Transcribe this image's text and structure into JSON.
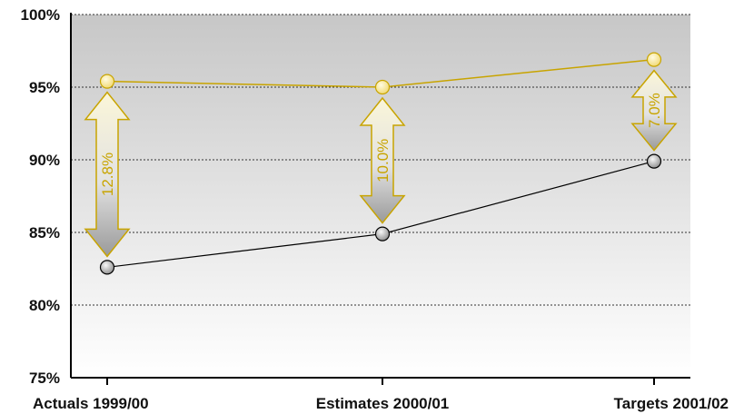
{
  "chart_data": {
    "type": "line",
    "title": "",
    "xlabel": "",
    "ylabel": "",
    "categories": [
      "Actuals 1999/00",
      "Estimates 2000/01",
      "Targets 2001/02"
    ],
    "series": [
      {
        "name": "",
        "values": [
          95.4,
          95.0,
          96.9
        ],
        "color": "#c8a400"
      },
      {
        "name": "",
        "values": [
          82.6,
          84.9,
          89.9
        ],
        "color": "#000000"
      }
    ],
    "gaps": [
      {
        "category": "Actuals 1999/00",
        "label": "12.8%"
      },
      {
        "category": "Estimates 2000/01",
        "label": "10.0%"
      },
      {
        "category": "Targets 2001/02",
        "label": "7.0%"
      }
    ],
    "ylim": [
      75,
      100
    ],
    "yticks": [
      75,
      80,
      85,
      90,
      95,
      100
    ],
    "ytick_labels": [
      "75%",
      "80%",
      "85%",
      "90%",
      "95%",
      "100%"
    ],
    "grid": true,
    "colors": {
      "background_top": "#c7c7c7",
      "background_bottom": "#ffffff",
      "gap_arrow": "#c8a400"
    }
  }
}
